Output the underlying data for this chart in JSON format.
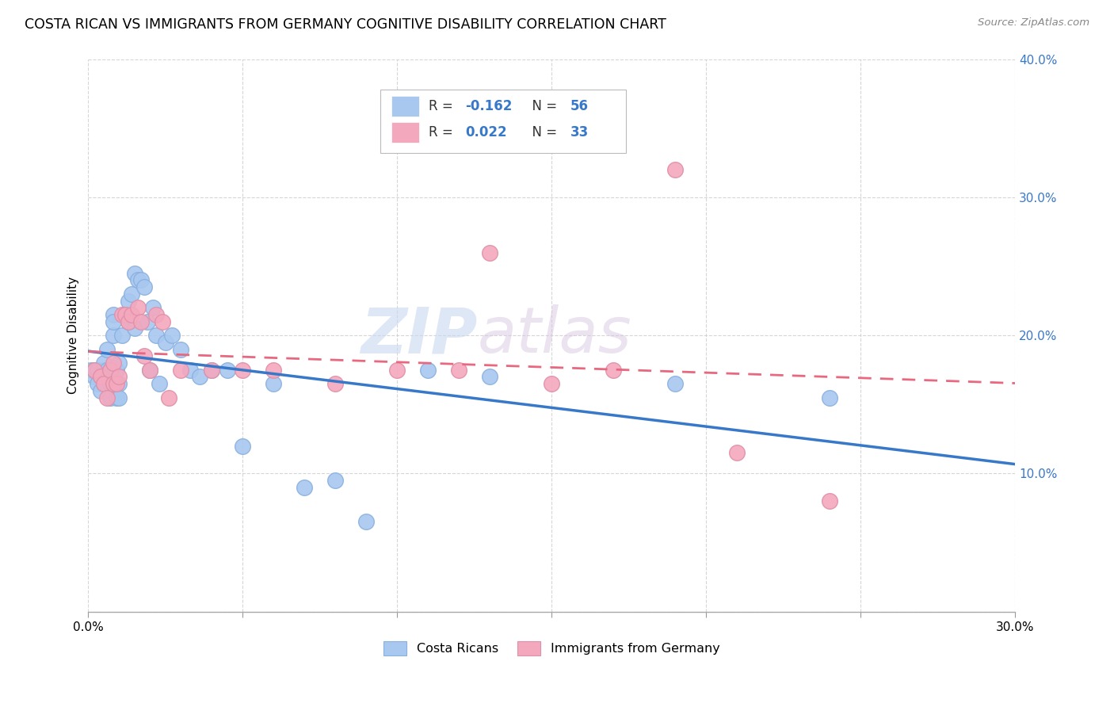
{
  "title": "COSTA RICAN VS IMMIGRANTS FROM GERMANY COGNITIVE DISABILITY CORRELATION CHART",
  "source": "Source: ZipAtlas.com",
  "ylabel": "Cognitive Disability",
  "xmin": 0.0,
  "xmax": 0.3,
  "ymin": 0.0,
  "ymax": 0.4,
  "yticks": [
    0.0,
    0.1,
    0.2,
    0.3,
    0.4
  ],
  "legend_blue_R": "R = -0.162",
  "legend_blue_N": "N = 56",
  "legend_pink_R": "R =  0.022",
  "legend_pink_N": "N = 33",
  "legend_label_blue": "Costa Ricans",
  "legend_label_pink": "Immigrants from Germany",
  "blue_color": "#A8C8F0",
  "pink_color": "#F4A8BE",
  "blue_line_color": "#3878C8",
  "pink_line_color": "#E86880",
  "watermark_zip": "ZIP",
  "watermark_atlas": "atlas",
  "blue_scatter_x": [
    0.001,
    0.002,
    0.002,
    0.003,
    0.003,
    0.004,
    0.004,
    0.005,
    0.005,
    0.005,
    0.006,
    0.006,
    0.006,
    0.007,
    0.007,
    0.007,
    0.008,
    0.008,
    0.008,
    0.009,
    0.009,
    0.01,
    0.01,
    0.01,
    0.011,
    0.012,
    0.012,
    0.013,
    0.013,
    0.014,
    0.015,
    0.015,
    0.016,
    0.017,
    0.018,
    0.019,
    0.02,
    0.021,
    0.022,
    0.023,
    0.025,
    0.027,
    0.03,
    0.033,
    0.036,
    0.04,
    0.045,
    0.05,
    0.06,
    0.07,
    0.08,
    0.09,
    0.11,
    0.13,
    0.19,
    0.24
  ],
  "blue_scatter_y": [
    0.175,
    0.17,
    0.175,
    0.165,
    0.175,
    0.17,
    0.16,
    0.165,
    0.175,
    0.18,
    0.19,
    0.175,
    0.17,
    0.175,
    0.165,
    0.155,
    0.2,
    0.215,
    0.21,
    0.155,
    0.175,
    0.18,
    0.165,
    0.155,
    0.2,
    0.215,
    0.215,
    0.225,
    0.21,
    0.23,
    0.205,
    0.245,
    0.24,
    0.24,
    0.235,
    0.21,
    0.175,
    0.22,
    0.2,
    0.165,
    0.195,
    0.2,
    0.19,
    0.175,
    0.17,
    0.175,
    0.175,
    0.12,
    0.165,
    0.09,
    0.095,
    0.065,
    0.175,
    0.17,
    0.165,
    0.155
  ],
  "pink_scatter_x": [
    0.002,
    0.004,
    0.005,
    0.006,
    0.007,
    0.008,
    0.008,
    0.009,
    0.01,
    0.011,
    0.012,
    0.013,
    0.014,
    0.016,
    0.017,
    0.018,
    0.02,
    0.022,
    0.024,
    0.026,
    0.03,
    0.04,
    0.05,
    0.06,
    0.08,
    0.1,
    0.12,
    0.13,
    0.15,
    0.17,
    0.19,
    0.21,
    0.24
  ],
  "pink_scatter_y": [
    0.175,
    0.17,
    0.165,
    0.155,
    0.175,
    0.18,
    0.165,
    0.165,
    0.17,
    0.215,
    0.215,
    0.21,
    0.215,
    0.22,
    0.21,
    0.185,
    0.175,
    0.215,
    0.21,
    0.155,
    0.175,
    0.175,
    0.175,
    0.175,
    0.165,
    0.175,
    0.175,
    0.26,
    0.165,
    0.175,
    0.32,
    0.115,
    0.08
  ]
}
